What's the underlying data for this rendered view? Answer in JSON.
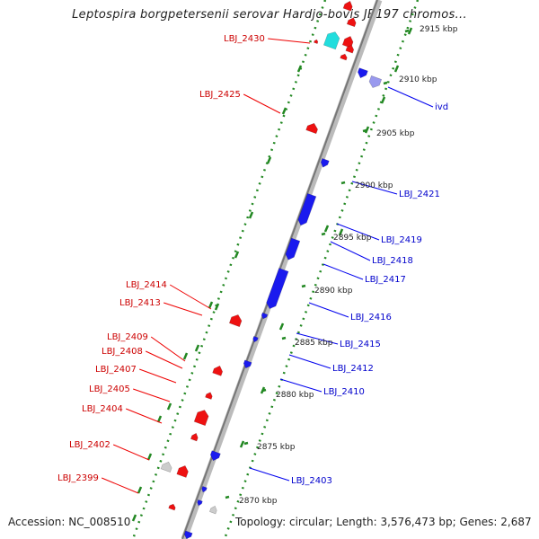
{
  "title": "Leptospira borgpetersenii serovar Hardjo-bovis JB197 chromos...",
  "footer": {
    "accession": "Accession: NC_008510",
    "summary": "Topology: circular; Length: 3,576,473 bp; Genes: 2,687"
  },
  "colors": {
    "forward_gene": "#ee1111",
    "reverse_gene": "#1a1aee",
    "rna_gene": "#22dddd",
    "pseudo_gene": "#9999ee",
    "other_gene": "#cccccc",
    "tick": "#228822",
    "backbone": "#999999",
    "label_forward": "#cc0000",
    "label_reverse": "#0000cc"
  },
  "ticks": [
    "2915 kbp",
    "2910 kbp",
    "2905 kbp",
    "2900 kbp",
    "2895 kbp",
    "2890 kbp",
    "2885 kbp",
    "2880 kbp",
    "2875 kbp",
    "2870 kbp"
  ],
  "gene_labels_left": [
    "LBJ_2430",
    "LBJ_2425",
    "LBJ_2414",
    "LBJ_2413",
    "LBJ_2409",
    "LBJ_2408",
    "LBJ_2407",
    "LBJ_2405",
    "LBJ_2404",
    "LBJ_2402",
    "LBJ_2399"
  ],
  "gene_labels_right": [
    "ivd",
    "LBJ_2421",
    "LBJ_2419",
    "LBJ_2418",
    "LBJ_2417",
    "LBJ_2416",
    "LBJ_2415",
    "LBJ_2412",
    "LBJ_2410",
    "LBJ_2403"
  ]
}
